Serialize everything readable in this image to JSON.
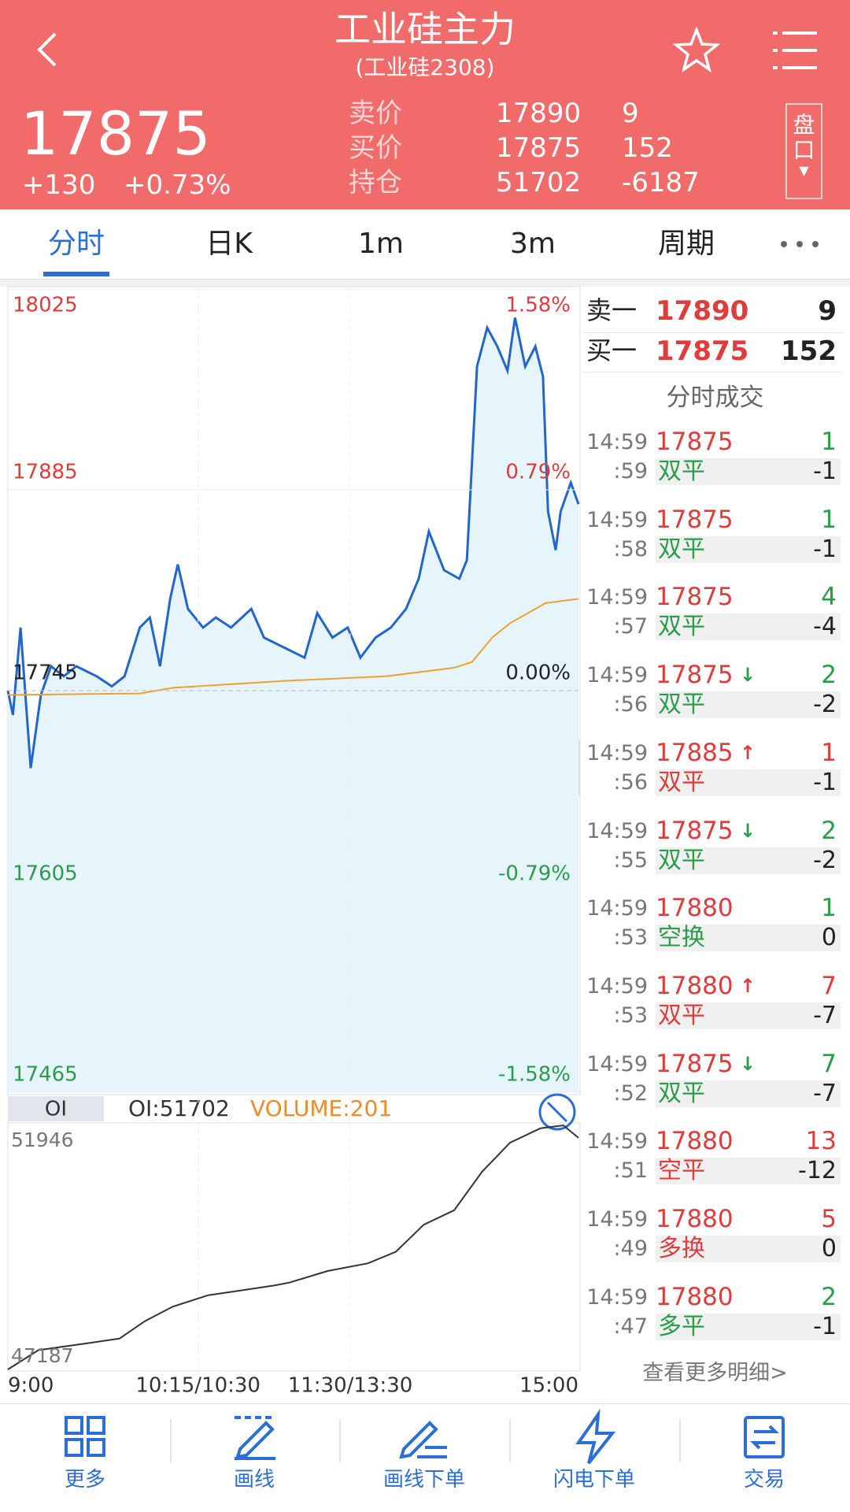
{
  "header": {
    "title": "工业硅主力",
    "subtitle": "(工业硅2308)",
    "price": "17875",
    "change": "+130",
    "change_pct": "+0.73%",
    "quote": [
      {
        "label": "卖价",
        "price": "17890",
        "volume": "9"
      },
      {
        "label": "买价",
        "price": "17875",
        "volume": "152"
      },
      {
        "label": "持仓",
        "price": "51702",
        "volume": "-6187"
      }
    ],
    "side_button": [
      "盘",
      "口"
    ]
  },
  "tabs": [
    "分时",
    "日K",
    "1m",
    "3m",
    "周期"
  ],
  "chart_data": [
    {
      "type": "line",
      "xlim": [
        0,
        225
      ],
      "xticks": [
        {
          "value": 0,
          "label": "9:00"
        },
        {
          "value": 75,
          "label": "10:15/10:30"
        },
        {
          "value": 135,
          "label": "11:30/13:30"
        },
        {
          "value": 225,
          "label": "15:00"
        }
      ],
      "ylim": [
        17465,
        18025
      ],
      "yticks": [
        18025,
        17885,
        17745,
        17605,
        17465
      ],
      "y2lim": [
        -1.58,
        1.58
      ],
      "y2ticks": [
        {
          "value": 1.58,
          "label": "1.58%"
        },
        {
          "value": 0.79,
          "label": "0.79%"
        },
        {
          "value": 0,
          "label": "0.00%"
        },
        {
          "value": -0.79,
          "label": "-0.79%"
        },
        {
          "value": -1.58,
          "label": "-1.58%"
        }
      ],
      "grid": true,
      "up_color": "#e03c3c",
      "down_color": "#2a9d4a",
      "flat_color": "#222222",
      "series": [
        {
          "color": "#2266cc",
          "fill": "#e6f4fc",
          "x": [
            0,
            2,
            5,
            9,
            13,
            17,
            22,
            27,
            35,
            41,
            46,
            52,
            56,
            60,
            64,
            67,
            71,
            77,
            82,
            88,
            96,
            101,
            109,
            117,
            122,
            128,
            134,
            139,
            145,
            151,
            157,
            162,
            166,
            172,
            178,
            181,
            185,
            189,
            193,
            197,
            200,
            204,
            208,
            211,
            213,
            216,
            218,
            222,
            225
          ],
          "values": [
            17745,
            17728,
            17789,
            17691,
            17742,
            17762,
            17755,
            17762,
            17755,
            17748,
            17755,
            17789,
            17796,
            17762,
            17809,
            17833,
            17802,
            17789,
            17796,
            17789,
            17802,
            17782,
            17775,
            17768,
            17799,
            17782,
            17789,
            17768,
            17782,
            17789,
            17802,
            17823,
            17856,
            17829,
            17823,
            17836,
            17971,
            17998,
            17985,
            17968,
            18005,
            17971,
            17985,
            17964,
            17870,
            17843,
            17870,
            17890,
            17875
          ]
        },
        {
          "color": "#f0a030",
          "x": [
            0,
            52,
            65,
            111,
            149,
            176,
            183,
            191,
            198,
            212,
            225
          ],
          "values": [
            17742,
            17743,
            17747,
            17752,
            17755,
            17761,
            17765,
            17782,
            17792,
            17806,
            17809
          ]
        }
      ]
    },
    {
      "type": "line",
      "label": "OI",
      "readouts": [
        "OI:51702",
        "VOLUME:201"
      ],
      "xlim": [
        0,
        225
      ],
      "ylim": [
        47187,
        51946
      ],
      "yticks": [
        51946,
        47187
      ],
      "series": [
        {
          "color": "#333333",
          "x": [
            0,
            12,
            31,
            44,
            54,
            65,
            79,
            92,
            105,
            111,
            126,
            142,
            153,
            164,
            176,
            187,
            198,
            210,
            219,
            225
          ],
          "values": [
            47187,
            47563,
            47695,
            47789,
            48128,
            48410,
            48635,
            48729,
            48823,
            48880,
            49106,
            49256,
            49482,
            50009,
            50291,
            51043,
            51607,
            51889,
            51946,
            51702
          ]
        }
      ]
    }
  ],
  "order_book": [
    {
      "label": "卖一",
      "price": "17890",
      "volume": "9"
    },
    {
      "label": "买一",
      "price": "17875",
      "volume": "152"
    }
  ],
  "trades": {
    "title": "分时成交",
    "rows": [
      {
        "time": "14:59",
        "sec": ":59",
        "price": "17875",
        "arrow": "",
        "volume": "1",
        "type": "双平",
        "change": "-1",
        "color": "#2a9d4a"
      },
      {
        "time": "14:59",
        "sec": ":58",
        "price": "17875",
        "arrow": "",
        "volume": "1",
        "type": "双平",
        "change": "-1",
        "color": "#2a9d4a"
      },
      {
        "time": "14:59",
        "sec": ":57",
        "price": "17875",
        "arrow": "",
        "volume": "4",
        "type": "双平",
        "change": "-4",
        "color": "#2a9d4a"
      },
      {
        "time": "14:59",
        "sec": ":56",
        "price": "17875",
        "arrow": "↓",
        "volume": "2",
        "type": "双平",
        "change": "-2",
        "color": "#2a9d4a"
      },
      {
        "time": "14:59",
        "sec": ":56",
        "price": "17885",
        "arrow": "↑",
        "volume": "1",
        "type": "双平",
        "change": "-1",
        "color": "#e03c3c"
      },
      {
        "time": "14:59",
        "sec": ":55",
        "price": "17875",
        "arrow": "↓",
        "volume": "2",
        "type": "双平",
        "change": "-2",
        "color": "#2a9d4a"
      },
      {
        "time": "14:59",
        "sec": ":53",
        "price": "17880",
        "arrow": "",
        "volume": "1",
        "type": "空换",
        "change": "0",
        "color": "#2a9d4a"
      },
      {
        "time": "14:59",
        "sec": ":53",
        "price": "17880",
        "arrow": "↑",
        "volume": "7",
        "type": "双平",
        "change": "-7",
        "color": "#e03c3c"
      },
      {
        "time": "14:59",
        "sec": ":52",
        "price": "17875",
        "arrow": "↓",
        "volume": "7",
        "type": "双平",
        "change": "-7",
        "color": "#2a9d4a"
      },
      {
        "time": "14:59",
        "sec": ":51",
        "price": "17880",
        "arrow": "",
        "volume": "13",
        "type": "空平",
        "change": "-12",
        "color": "#e03c3c"
      },
      {
        "time": "14:59",
        "sec": ":49",
        "price": "17880",
        "arrow": "",
        "volume": "5",
        "type": "多换",
        "change": "0",
        "color": "#e03c3c"
      },
      {
        "time": "14:59",
        "sec": ":47",
        "price": "17880",
        "arrow": "",
        "volume": "2",
        "type": "多平",
        "change": "-1",
        "color": "#2a9d4a"
      }
    ]
  },
  "more_link": "查看更多明细>",
  "nav": [
    "更多",
    "画线",
    "画线下单",
    "闪电下单",
    "交易"
  ]
}
